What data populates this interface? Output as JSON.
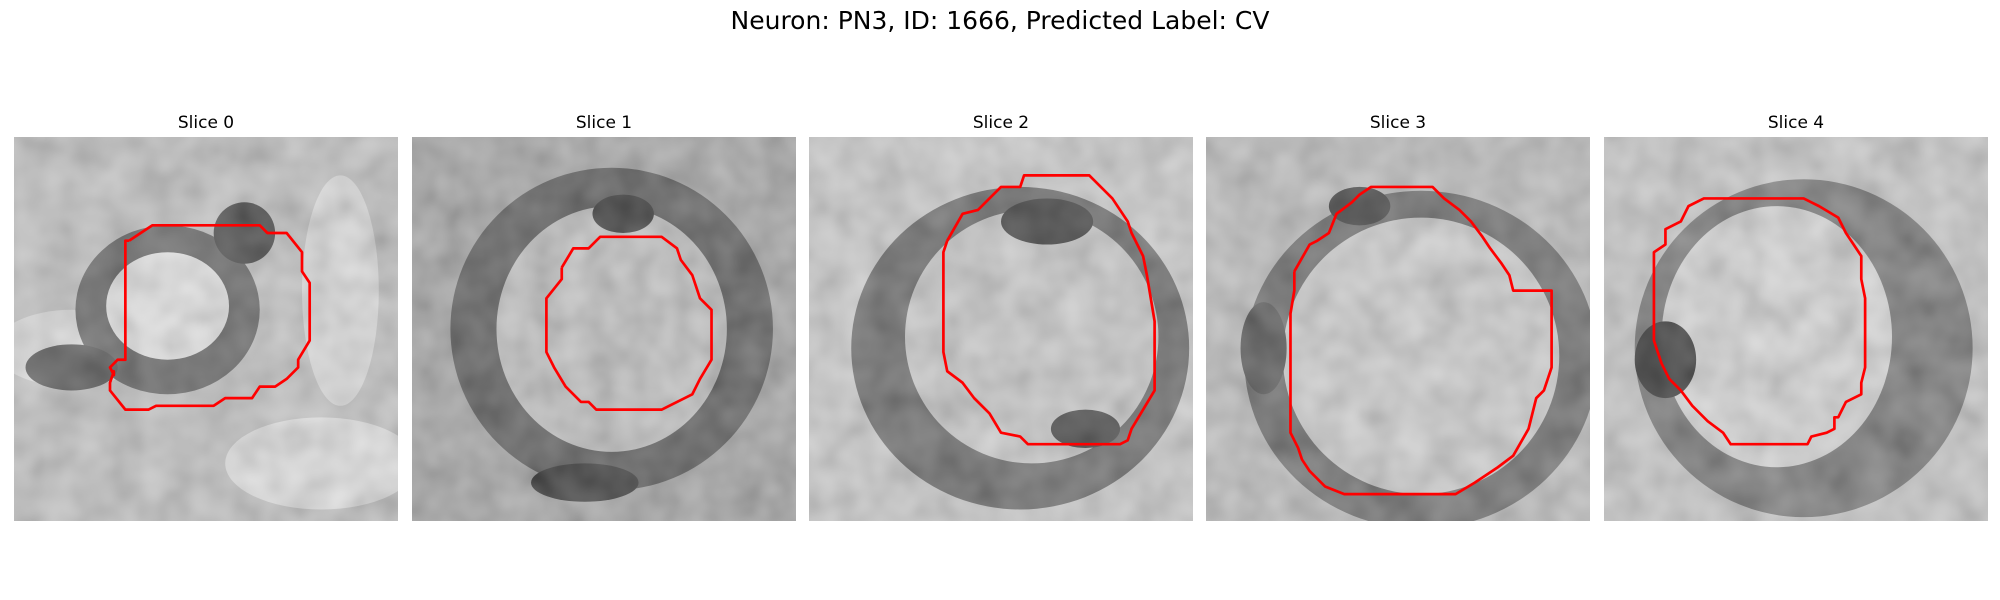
{
  "figure": {
    "title": "Neuron: PN3, ID: 1666, Predicted Label: CV"
  },
  "panels": [
    {
      "title": "Slice 0"
    },
    {
      "title": "Slice 1"
    },
    {
      "title": "Slice 2"
    },
    {
      "title": "Slice 3"
    },
    {
      "title": "Slice 4"
    }
  ],
  "colors": {
    "contour": "#ff0000",
    "background": "#ffffff"
  }
}
